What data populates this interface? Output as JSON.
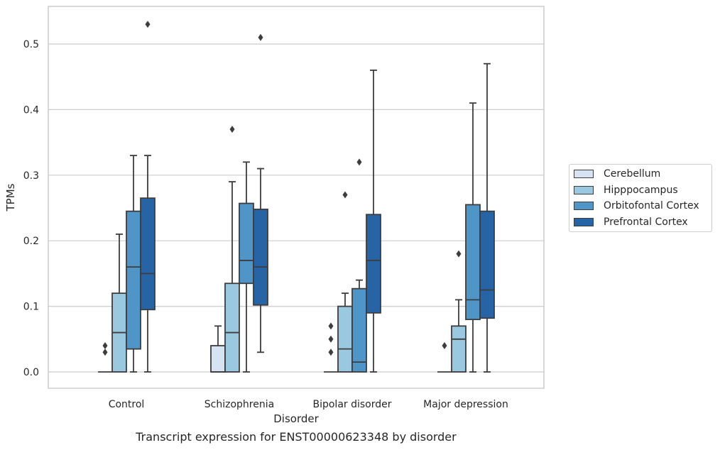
{
  "chart_data": {
    "type": "box",
    "caption": "Transcript expression for ENST00000623348 by disorder",
    "xlabel": "Disorder",
    "ylabel": "TPMs",
    "ylim": [
      -0.026,
      0.557
    ],
    "yticks": [
      0.0,
      0.1,
      0.2,
      0.3,
      0.4,
      0.5
    ],
    "ytick_labels": [
      "0.0",
      "0.1",
      "0.2",
      "0.3",
      "0.4",
      "0.5"
    ],
    "grid": "horizontal",
    "legend_position": "right",
    "categories": [
      "Control",
      "Schizophrenia",
      "Bipolar disorder",
      "Major depression"
    ],
    "series": [
      {
        "name": "Cerebellum",
        "color": "#d5e3f2",
        "boxes": [
          {
            "category": "Control",
            "whislo": 0.0,
            "q1": 0.0,
            "med": 0.0,
            "q3": 0.0,
            "whishi": 0.0,
            "fliers": []
          },
          {
            "category": "Schizophrenia",
            "whislo": 0.0,
            "q1": 0.0,
            "med": 0.0,
            "q3": 0.04,
            "whishi": 0.07,
            "fliers": []
          },
          {
            "category": "Bipolar disorder",
            "whislo": 0.0,
            "q1": 0.0,
            "med": 0.0,
            "q3": 0.0,
            "whishi": 0.0,
            "fliers": []
          },
          {
            "category": "Major depression",
            "whislo": 0.0,
            "q1": 0.0,
            "med": 0.0,
            "q3": 0.0,
            "whishi": 0.0,
            "fliers": []
          }
        ]
      },
      {
        "name": "Hipppocampus",
        "color": "#9ac8e0",
        "boxes": [
          {
            "category": "Control",
            "whislo": 0.0,
            "q1": 0.0,
            "med": 0.06,
            "q3": 0.12,
            "whishi": 0.21,
            "fliers": []
          },
          {
            "category": "Schizophrenia",
            "whislo": 0.0,
            "q1": 0.0,
            "med": 0.06,
            "q3": 0.135,
            "whishi": 0.29,
            "fliers": [
              0.37
            ]
          },
          {
            "category": "Bipolar disorder",
            "whislo": 0.0,
            "q1": 0.0,
            "med": 0.035,
            "q3": 0.1,
            "whishi": 0.12,
            "fliers": []
          },
          {
            "category": "Major depression",
            "whislo": 0.0,
            "q1": 0.0,
            "med": 0.05,
            "q3": 0.07,
            "whishi": 0.11,
            "fliers": [
              0.18
            ]
          }
        ]
      },
      {
        "name": "Orbitofontal Cortex",
        "color": "#5095c8",
        "boxes": [
          {
            "category": "Control",
            "whislo": 0.0,
            "q1": 0.035,
            "med": 0.16,
            "q3": 0.245,
            "whishi": 0.33,
            "fliers": []
          },
          {
            "category": "Schizophrenia",
            "whislo": 0.0,
            "q1": 0.135,
            "med": 0.17,
            "q3": 0.257,
            "whishi": 0.32,
            "fliers": []
          },
          {
            "category": "Bipolar disorder",
            "whislo": 0.0,
            "q1": 0.0,
            "med": 0.015,
            "q3": 0.127,
            "whishi": 0.14,
            "fliers": []
          },
          {
            "category": "Major depression",
            "whislo": 0.0,
            "q1": 0.08,
            "med": 0.11,
            "q3": 0.255,
            "whishi": 0.41,
            "fliers": []
          }
        ]
      },
      {
        "name": "Prefrontal Cortex",
        "color": "#2664a6",
        "boxes": [
          {
            "category": "Control",
            "whislo": 0.0,
            "q1": 0.095,
            "med": 0.15,
            "q3": 0.265,
            "whishi": 0.33,
            "fliers": [
              0.53
            ]
          },
          {
            "category": "Schizophrenia",
            "whislo": 0.03,
            "q1": 0.102,
            "med": 0.16,
            "q3": 0.248,
            "whishi": 0.31,
            "fliers": [
              0.51
            ]
          },
          {
            "category": "Bipolar disorder",
            "whislo": 0.0,
            "q1": 0.09,
            "med": 0.17,
            "q3": 0.24,
            "whishi": 0.46,
            "fliers": []
          },
          {
            "category": "Major depression",
            "whislo": 0.0,
            "q1": 0.082,
            "med": 0.125,
            "q3": 0.245,
            "whishi": 0.47,
            "fliers": []
          }
        ]
      }
    ],
    "extra_fliers": [
      {
        "series": "Cerebellum",
        "category": "Control",
        "values": [
          0.03,
          0.04
        ]
      },
      {
        "series": "Cerebellum",
        "category": "Bipolar disorder",
        "values": [
          0.03,
          0.05,
          0.07
        ]
      },
      {
        "series": "Cerebellum",
        "category": "Major depression",
        "values": [
          0.04
        ]
      },
      {
        "series": "Hipppocampus",
        "category": "Bipolar disorder",
        "values": [
          0.27
        ]
      },
      {
        "series": "Orbitofontal Cortex",
        "category": "Bipolar disorder",
        "values": [
          0.32
        ]
      }
    ]
  },
  "style": {
    "line_color": "#3d3d3d",
    "grid_color": "#cccccc",
    "frame_color": "#cccccc"
  }
}
